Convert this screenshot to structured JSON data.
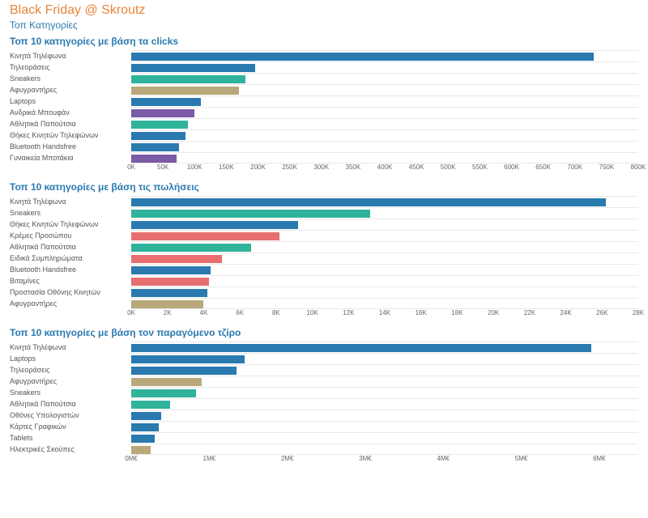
{
  "header": {
    "title": "Black Friday @ Skroutz",
    "title_color": "#e8833a",
    "subtitle": "Τοπ Κατηγορίες",
    "subtitle_color": "#2a7ab0"
  },
  "colors": {
    "blue": "#2a7ab0",
    "teal": "#2fb39b",
    "tan": "#b9a97a",
    "purple": "#7b5aa6",
    "coral": "#e86f6f",
    "grid": "#e8e8e8",
    "text": "#555555"
  },
  "charts": [
    {
      "title": "Τοπ 10 κατηγορίες με βάση τα clicks",
      "title_color": "#2a7ab0",
      "xmax": 800000,
      "tick_step": 50000,
      "tick_suffix": "K",
      "tick_divisor": 1000,
      "rows": [
        {
          "label": "Κινητά Τηλέφωνα",
          "value": 730000,
          "color": "#2a7ab0"
        },
        {
          "label": "Τηλεοράσεις",
          "value": 195000,
          "color": "#2a7ab0"
        },
        {
          "label": "Sneakers",
          "value": 180000,
          "color": "#2fb39b"
        },
        {
          "label": "Αφυγραντήρες",
          "value": 170000,
          "color": "#b9a97a"
        },
        {
          "label": "Laptops",
          "value": 110000,
          "color": "#2a7ab0"
        },
        {
          "label": "Ανδρικά Μπουφάν",
          "value": 100000,
          "color": "#7b5aa6"
        },
        {
          "label": "Αθλητικά Παπούτσια",
          "value": 90000,
          "color": "#2fb39b"
        },
        {
          "label": "Θήκες Κινητών Τηλεφώνων",
          "value": 85000,
          "color": "#2a7ab0"
        },
        {
          "label": "Bluetooth Handsfree",
          "value": 75000,
          "color": "#2a7ab0"
        },
        {
          "label": "Γυναικεία Μποτάκια",
          "value": 72000,
          "color": "#7b5aa6"
        }
      ]
    },
    {
      "title": "Τοπ 10 κατηγορίες με βάση τις πωλήσεις",
      "title_color": "#2a7ab0",
      "xmax": 28000,
      "tick_step": 2000,
      "tick_suffix": "K",
      "tick_divisor": 1000,
      "rows": [
        {
          "label": "Κινητά Τηλέφωνα",
          "value": 26200,
          "color": "#2a7ab0"
        },
        {
          "label": "Sneakers",
          "value": 13200,
          "color": "#2fb39b"
        },
        {
          "label": "Θήκες Κινητών Τηλεφώνων",
          "value": 9200,
          "color": "#2a7ab0"
        },
        {
          "label": "Κρέμες Προσώπου",
          "value": 8200,
          "color": "#e86f6f"
        },
        {
          "label": "Αθλητικά Παπούτσια",
          "value": 6600,
          "color": "#2fb39b"
        },
        {
          "label": "Ειδικά Συμπληρώματα",
          "value": 5000,
          "color": "#e86f6f"
        },
        {
          "label": "Bluetooth Handsfree",
          "value": 4400,
          "color": "#2a7ab0"
        },
        {
          "label": "Βιταμίνες",
          "value": 4300,
          "color": "#e86f6f"
        },
        {
          "label": "Προστασία Οθόνης Κινητών",
          "value": 4200,
          "color": "#2a7ab0"
        },
        {
          "label": "Αφυγραντήρες",
          "value": 4000,
          "color": "#b9a97a"
        }
      ]
    },
    {
      "title": "Τοπ 10 κατηγορίες με βάση τον παραγόμενο τζίρο",
      "title_color": "#2a7ab0",
      "xmax": 6500000,
      "tick_step": 1000000,
      "tick_suffix": "M€",
      "tick_divisor": 1000000,
      "rows": [
        {
          "label": "Κινητά Τηλέφωνα",
          "value": 5900000,
          "color": "#2a7ab0"
        },
        {
          "label": "Laptops",
          "value": 1450000,
          "color": "#2a7ab0"
        },
        {
          "label": "Τηλεοράσεις",
          "value": 1350000,
          "color": "#2a7ab0"
        },
        {
          "label": "Αφυγραντήρες",
          "value": 900000,
          "color": "#b9a97a"
        },
        {
          "label": "Sneakers",
          "value": 830000,
          "color": "#2fb39b"
        },
        {
          "label": "Αθλητικά Παπούτσια",
          "value": 500000,
          "color": "#2fb39b"
        },
        {
          "label": "Οθόνες Υπολογιστών",
          "value": 380000,
          "color": "#2a7ab0"
        },
        {
          "label": "Κάρτες Γραφικών",
          "value": 350000,
          "color": "#2a7ab0"
        },
        {
          "label": "Tablets",
          "value": 300000,
          "color": "#2a7ab0"
        },
        {
          "label": "Ηλεκτρικές Σκούπες",
          "value": 250000,
          "color": "#b9a97a"
        }
      ]
    }
  ]
}
